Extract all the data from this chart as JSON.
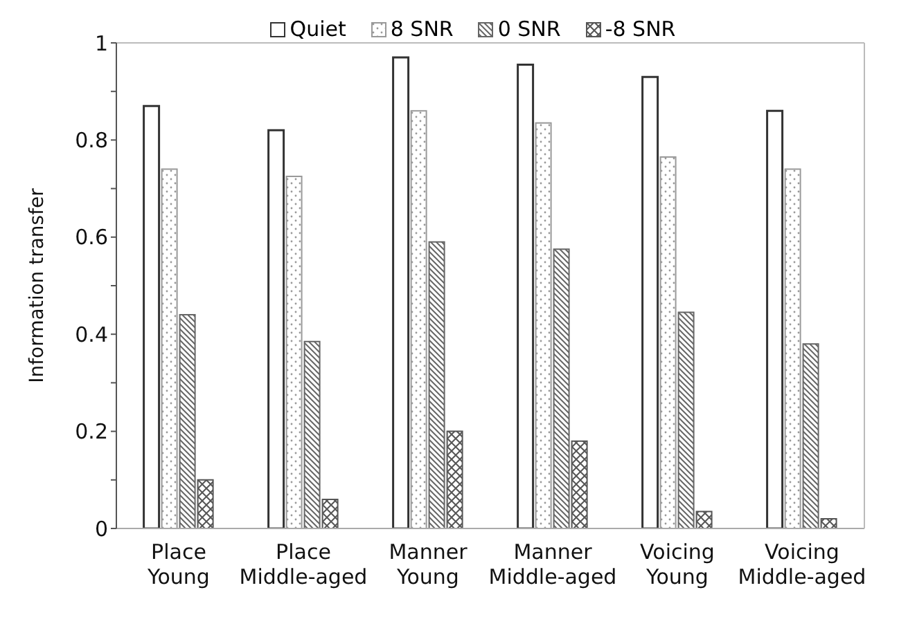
{
  "chart_data": {
    "type": "bar",
    "ylabel": "Information transfer",
    "categories": [
      "Place\nYoung",
      "Place\nMiddle-aged",
      "Manner\nYoung",
      "Manner\nMiddle-aged",
      "Voicing\nYoung",
      "Voicing\nMiddle-aged"
    ],
    "series": [
      {
        "name": "Quiet",
        "color": "#333333",
        "values": [
          0.87,
          0.82,
          0.97,
          0.955,
          0.93,
          0.86
        ]
      },
      {
        "name": "8 SNR",
        "color": "#999999",
        "values": [
          0.74,
          0.725,
          0.86,
          0.835,
          0.765,
          0.74
        ]
      },
      {
        "name": "0 SNR",
        "color": "#666666",
        "values": [
          0.44,
          0.385,
          0.59,
          0.575,
          0.445,
          0.38
        ]
      },
      {
        "name": "-8 SNR",
        "color": "#555555",
        "values": [
          0.1,
          0.06,
          0.2,
          0.18,
          0.035,
          0.02
        ]
      }
    ],
    "ylim": [
      0,
      1
    ],
    "yticks": [
      0,
      {
        "value": 0.1,
        "label": null
      },
      0.2,
      {
        "value": 0.3,
        "label": null
      },
      0.4,
      {
        "value": 0.5,
        "label": null
      },
      0.6,
      {
        "value": 0.7,
        "label": null
      },
      0.8,
      {
        "value": 0.9,
        "label": null
      },
      1
    ],
    "grid": false,
    "legend": "top"
  }
}
